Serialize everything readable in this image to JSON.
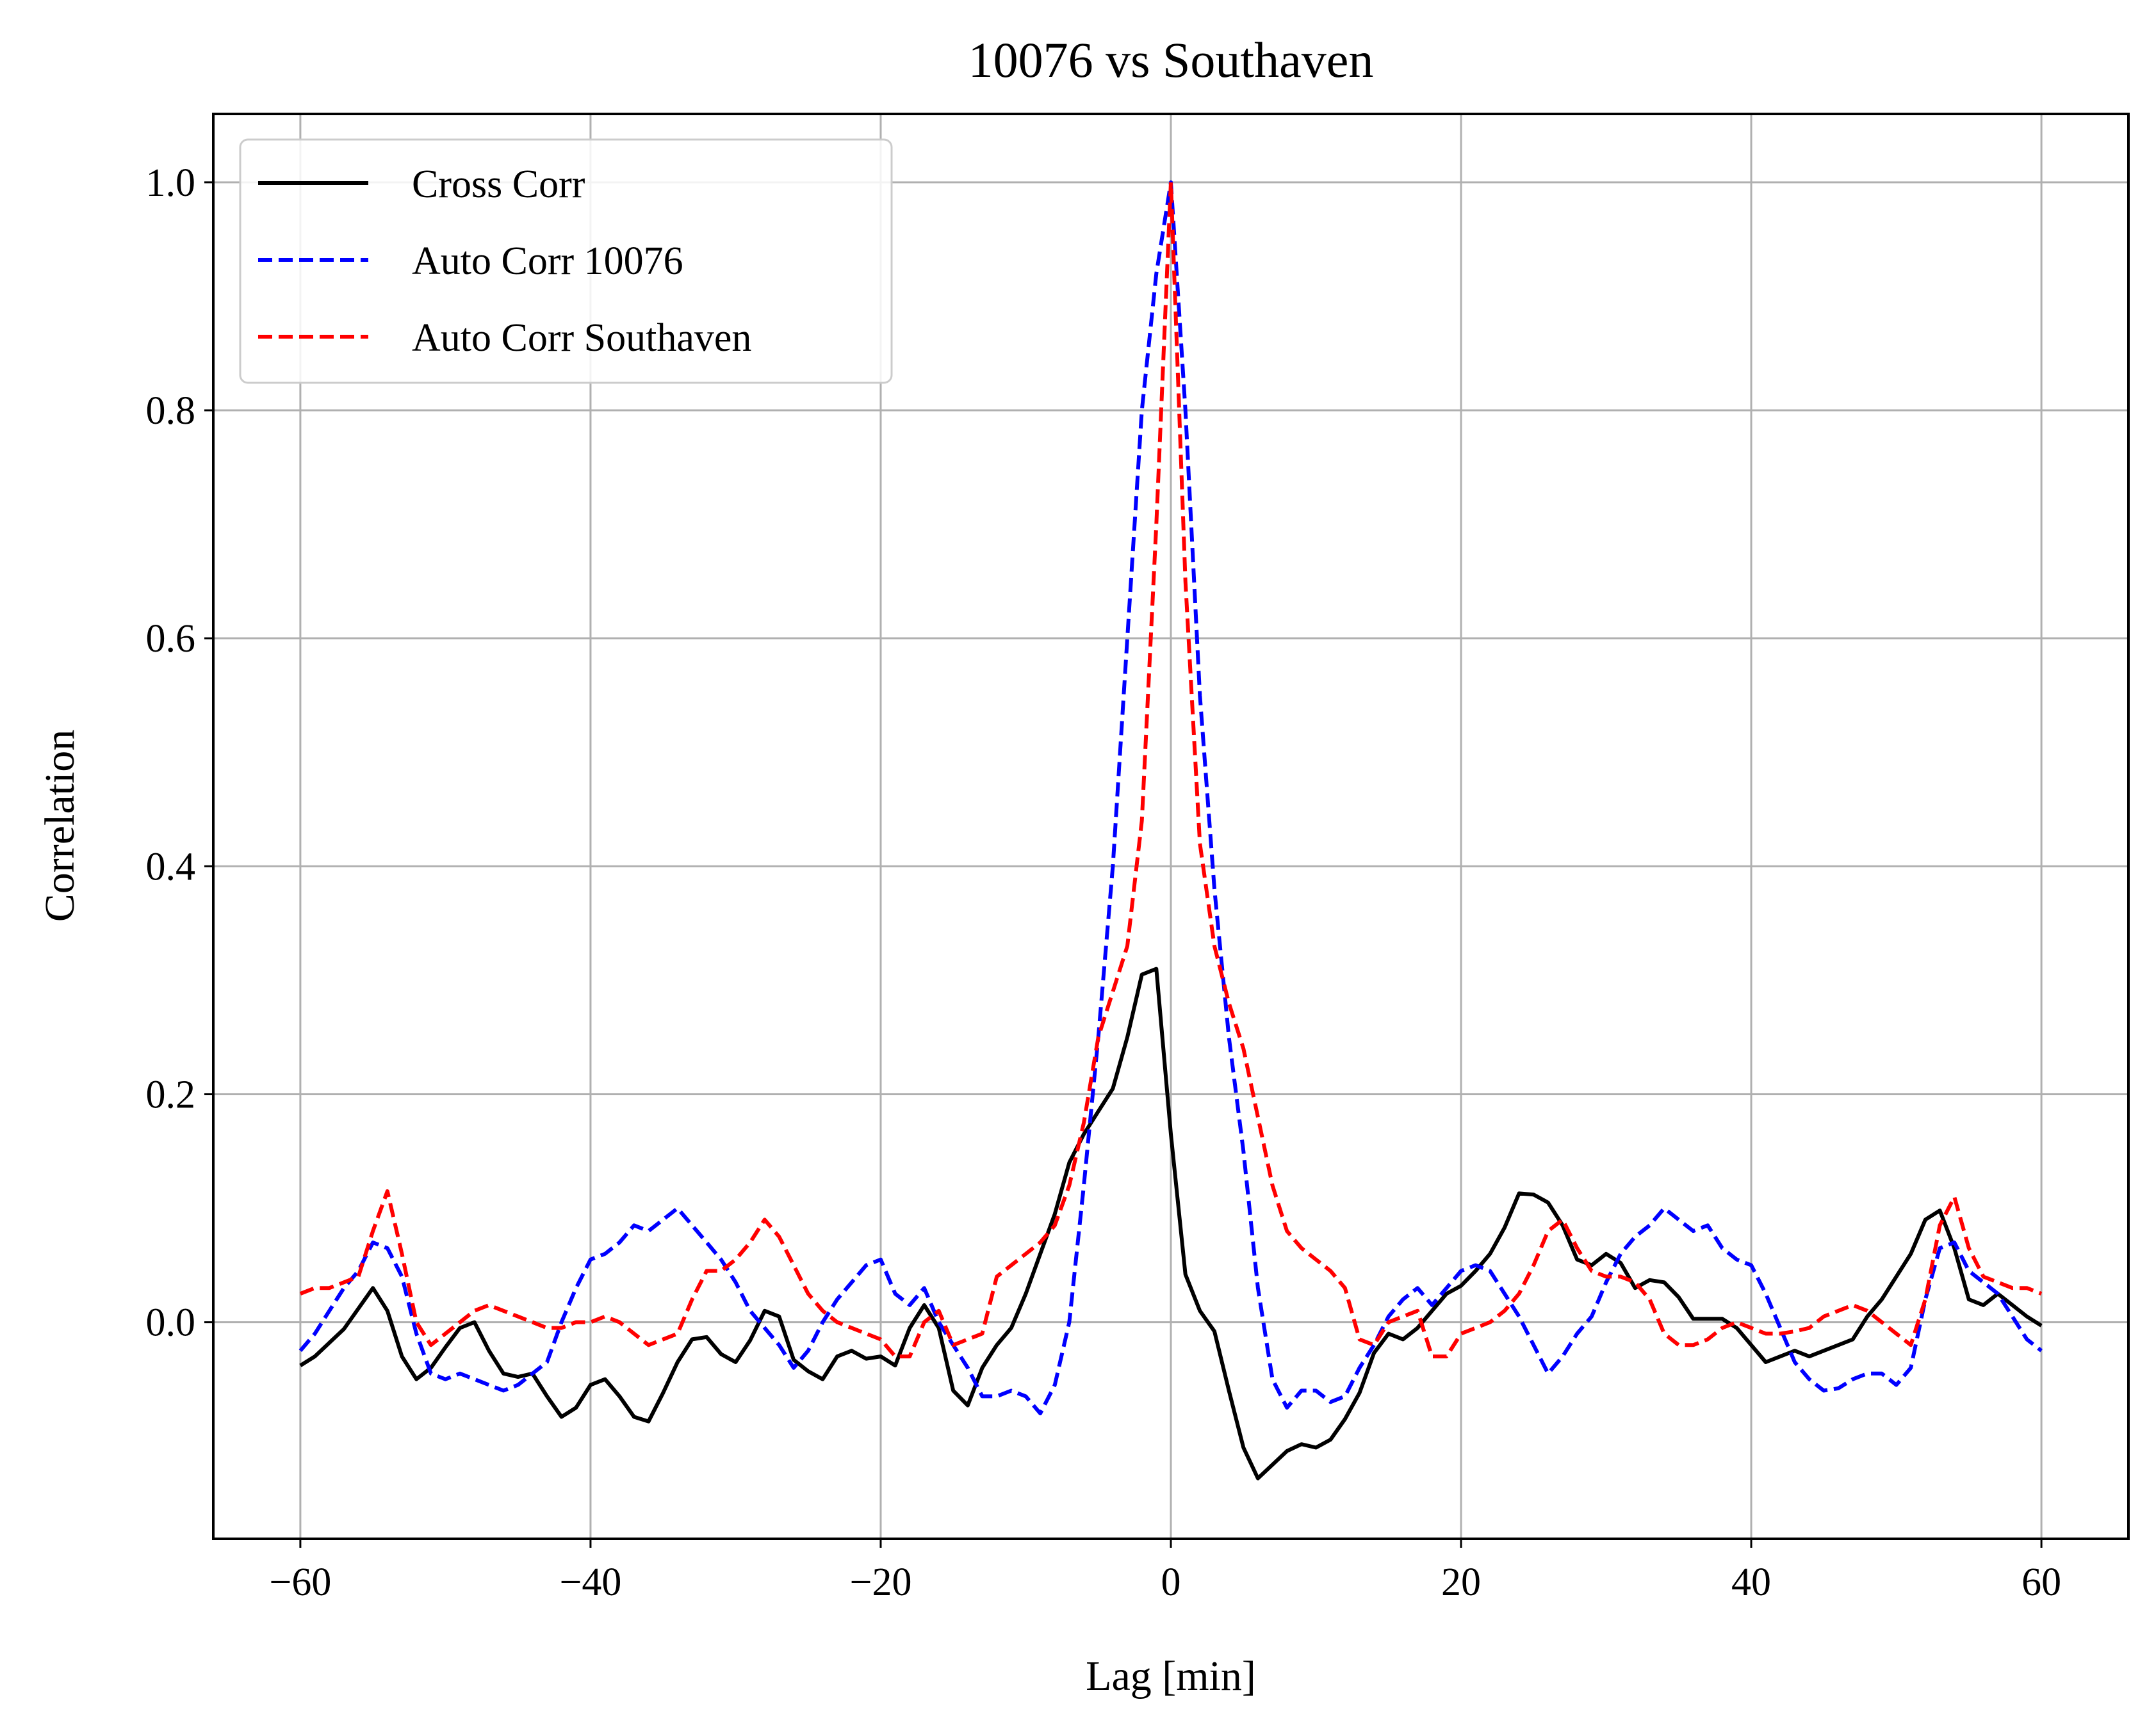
{
  "chart_data": {
    "type": "line",
    "title": "10076 vs Southaven",
    "xlabel": "Lag [min]",
    "ylabel": "Correlation",
    "xlim": [
      -66,
      66
    ],
    "ylim": [
      -0.19,
      1.06
    ],
    "grid": true,
    "legend_position": "top-left",
    "x_ticks": [
      -60,
      -40,
      -20,
      0,
      20,
      40,
      60
    ],
    "x_tick_labels": [
      "−60",
      "−40",
      "−20",
      "0",
      "20",
      "40",
      "60"
    ],
    "y_ticks": [
      0.0,
      0.2,
      0.4,
      0.6,
      0.8,
      1.0
    ],
    "y_tick_labels": [
      "0.0",
      "0.2",
      "0.4",
      "0.6",
      "0.8",
      "1.0"
    ],
    "x": [
      -60,
      -59,
      -58,
      -57,
      -56,
      -55,
      -54,
      -53,
      -52,
      -51,
      -50,
      -49,
      -48,
      -47,
      -46,
      -45,
      -44,
      -43,
      -42,
      -41,
      -40,
      -39,
      -38,
      -37,
      -36,
      -35,
      -34,
      -33,
      -32,
      -31,
      -30,
      -29,
      -28,
      -27,
      -26,
      -25,
      -24,
      -23,
      -22,
      -21,
      -20,
      -19,
      -18,
      -17,
      -16,
      -15,
      -14,
      -13,
      -12,
      -11,
      -10,
      -9,
      -8,
      -7,
      -6,
      -5,
      -4,
      -3,
      -2,
      -1,
      0,
      1,
      2,
      3,
      4,
      5,
      6,
      7,
      8,
      9,
      10,
      11,
      12,
      13,
      14,
      15,
      16,
      17,
      18,
      19,
      20,
      21,
      22,
      23,
      24,
      25,
      26,
      27,
      28,
      29,
      30,
      31,
      32,
      33,
      34,
      35,
      36,
      37,
      38,
      39,
      40,
      41,
      42,
      43,
      44,
      45,
      46,
      47,
      48,
      49,
      50,
      51,
      52,
      53,
      54,
      55,
      56,
      57,
      58,
      59,
      60
    ],
    "series": [
      {
        "name": "Cross Corr",
        "color": "#000000",
        "dash": "solid",
        "values": [
          -0.038,
          -0.03,
          -0.018,
          -0.006,
          0.012,
          0.03,
          0.01,
          -0.03,
          -0.05,
          -0.04,
          -0.022,
          -0.005,
          0.0,
          -0.025,
          -0.045,
          -0.048,
          -0.045,
          -0.065,
          -0.083,
          -0.075,
          -0.055,
          -0.05,
          -0.065,
          -0.083,
          -0.087,
          -0.062,
          -0.035,
          -0.015,
          -0.013,
          -0.028,
          -0.035,
          -0.016,
          0.01,
          0.005,
          -0.033,
          -0.043,
          -0.05,
          -0.03,
          -0.025,
          -0.032,
          -0.03,
          -0.038,
          -0.005,
          0.015,
          -0.005,
          -0.06,
          -0.073,
          -0.04,
          -0.02,
          -0.005,
          0.025,
          0.06,
          0.095,
          0.14,
          0.165,
          0.185,
          0.205,
          0.25,
          0.305,
          0.31,
          0.165,
          0.042,
          0.01,
          -0.008,
          -0.06,
          -0.11,
          -0.137,
          -0.125,
          -0.113,
          -0.107,
          -0.11,
          -0.103,
          -0.085,
          -0.062,
          -0.027,
          -0.01,
          -0.015,
          -0.005,
          0.01,
          0.025,
          0.032,
          0.045,
          0.06,
          0.083,
          0.113,
          0.112,
          0.105,
          0.085,
          0.055,
          0.05,
          0.06,
          0.052,
          0.03,
          0.037,
          0.035,
          0.022,
          0.003,
          0.003,
          0.003,
          -0.005,
          -0.02,
          -0.035,
          -0.03,
          -0.025,
          -0.03,
          -0.025,
          -0.02,
          -0.015,
          0.005,
          0.02,
          0.04,
          0.06,
          0.09,
          0.098,
          0.065,
          0.02,
          0.015,
          0.025,
          0.015,
          0.005,
          -0.003
        ]
      },
      {
        "name": "Auto Corr 10076",
        "color": "#0000ff",
        "dash": "dashed",
        "values": [
          -0.025,
          -0.01,
          0.01,
          0.03,
          0.045,
          0.07,
          0.065,
          0.04,
          -0.01,
          -0.045,
          -0.05,
          -0.045,
          -0.05,
          -0.055,
          -0.06,
          -0.055,
          -0.045,
          -0.035,
          0.0,
          0.03,
          0.055,
          0.06,
          0.07,
          0.085,
          0.08,
          0.09,
          0.1,
          0.085,
          0.07,
          0.055,
          0.035,
          0.01,
          -0.005,
          -0.02,
          -0.04,
          -0.025,
          0.0,
          0.02,
          0.035,
          0.05,
          0.055,
          0.025,
          0.015,
          0.03,
          0.0,
          -0.02,
          -0.04,
          -0.065,
          -0.065,
          -0.06,
          -0.065,
          -0.08,
          -0.055,
          0.0,
          0.12,
          0.25,
          0.4,
          0.6,
          0.8,
          0.92,
          1.0,
          0.8,
          0.55,
          0.38,
          0.25,
          0.15,
          0.03,
          -0.05,
          -0.075,
          -0.06,
          -0.06,
          -0.07,
          -0.065,
          -0.04,
          -0.02,
          0.005,
          0.02,
          0.03,
          0.015,
          0.03,
          0.045,
          0.05,
          0.045,
          0.025,
          0.005,
          -0.02,
          -0.045,
          -0.03,
          -0.01,
          0.005,
          0.035,
          0.06,
          0.075,
          0.085,
          0.1,
          0.09,
          0.08,
          0.085,
          0.065,
          0.055,
          0.05,
          0.025,
          -0.005,
          -0.035,
          -0.05,
          -0.06,
          -0.058,
          -0.05,
          -0.045,
          -0.045,
          -0.055,
          -0.04,
          0.02,
          0.065,
          0.07,
          0.045,
          0.035,
          0.025,
          0.005,
          -0.015,
          -0.025
        ]
      },
      {
        "name": "Auto Corr Southaven",
        "color": "#ff0000",
        "dash": "dashed",
        "values": [
          0.025,
          0.03,
          0.03,
          0.035,
          0.04,
          0.08,
          0.115,
          0.06,
          0.0,
          -0.02,
          -0.01,
          0.0,
          0.01,
          0.015,
          0.01,
          0.005,
          0.0,
          -0.005,
          -0.005,
          0.0,
          0.0,
          0.005,
          0.0,
          -0.01,
          -0.02,
          -0.015,
          -0.01,
          0.02,
          0.045,
          0.045,
          0.055,
          0.07,
          0.09,
          0.075,
          0.05,
          0.025,
          0.01,
          0.0,
          -0.005,
          -0.01,
          -0.015,
          -0.03,
          -0.03,
          0.0,
          0.01,
          -0.02,
          -0.015,
          -0.01,
          0.04,
          0.05,
          0.06,
          0.07,
          0.085,
          0.12,
          0.175,
          0.25,
          0.29,
          0.33,
          0.44,
          0.7,
          1.0,
          0.65,
          0.42,
          0.33,
          0.28,
          0.24,
          0.18,
          0.12,
          0.08,
          0.065,
          0.055,
          0.045,
          0.03,
          -0.015,
          -0.02,
          0.0,
          0.005,
          0.01,
          -0.03,
          -0.03,
          -0.01,
          -0.005,
          0.0,
          0.01,
          0.025,
          0.05,
          0.08,
          0.09,
          0.065,
          0.045,
          0.04,
          0.04,
          0.035,
          0.02,
          -0.01,
          -0.02,
          -0.02,
          -0.015,
          -0.005,
          0.0,
          -0.005,
          -0.01,
          -0.01,
          -0.008,
          -0.005,
          0.005,
          0.01,
          0.015,
          0.01,
          0.0,
          -0.01,
          -0.02,
          0.02,
          0.085,
          0.11,
          0.065,
          0.04,
          0.035,
          0.03,
          0.03,
          0.025
        ]
      }
    ]
  }
}
